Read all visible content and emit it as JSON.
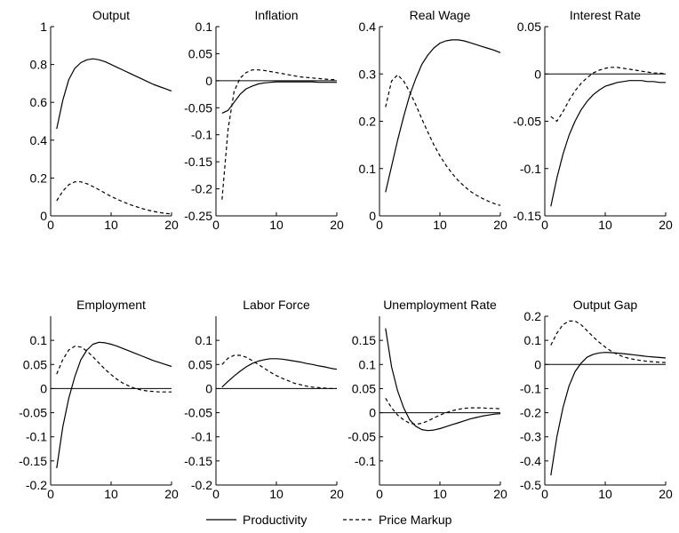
{
  "chart_data": [
    {
      "type": "line",
      "title": "Output",
      "xlim": [
        0,
        20
      ],
      "ylim": [
        0,
        1
      ],
      "xticks": [
        "0",
        "10",
        "20"
      ],
      "yticks": [
        "0",
        "0.2",
        "0.4",
        "0.6",
        "0.8",
        "1"
      ],
      "zero_line": false,
      "x": [
        1,
        2,
        3,
        4,
        5,
        6,
        7,
        8,
        9,
        10,
        11,
        12,
        13,
        14,
        15,
        16,
        17,
        18,
        19,
        20
      ],
      "series": [
        {
          "name": "Productivity",
          "values": [
            0.46,
            0.61,
            0.72,
            0.78,
            0.81,
            0.825,
            0.83,
            0.825,
            0.815,
            0.8,
            0.785,
            0.77,
            0.755,
            0.74,
            0.725,
            0.71,
            0.695,
            0.683,
            0.672,
            0.66
          ]
        },
        {
          "name": "Price Markup",
          "values": [
            0.08,
            0.13,
            0.165,
            0.18,
            0.18,
            0.17,
            0.155,
            0.138,
            0.12,
            0.103,
            0.088,
            0.074,
            0.061,
            0.05,
            0.04,
            0.031,
            0.024,
            0.018,
            0.013,
            0.01
          ]
        }
      ]
    },
    {
      "type": "line",
      "title": "Inflation",
      "xlim": [
        0,
        20
      ],
      "ylim": [
        -0.25,
        0.1
      ],
      "xticks": [
        "0",
        "10",
        "20"
      ],
      "yticks": [
        "-0.25",
        "-0.2",
        "-0.15",
        "-0.1",
        "-0.05",
        "0",
        "0.05",
        "0.1"
      ],
      "zero_line": true,
      "x": [
        1,
        2,
        3,
        4,
        5,
        6,
        7,
        8,
        9,
        10,
        11,
        12,
        13,
        14,
        15,
        16,
        17,
        18,
        19,
        20
      ],
      "series": [
        {
          "name": "Productivity",
          "values": [
            -0.06,
            -0.055,
            -0.04,
            -0.025,
            -0.015,
            -0.01,
            -0.006,
            -0.004,
            -0.003,
            -0.002,
            -0.002,
            -0.002,
            -0.002,
            -0.002,
            -0.002,
            -0.002,
            -0.003,
            -0.003,
            -0.003,
            -0.003
          ]
        },
        {
          "name": "Price Markup",
          "values": [
            -0.22,
            -0.09,
            -0.02,
            0.005,
            0.015,
            0.02,
            0.02,
            0.019,
            0.017,
            0.015,
            0.013,
            0.011,
            0.009,
            0.007,
            0.006,
            0.005,
            0.004,
            0.003,
            0.002,
            0.002
          ]
        }
      ]
    },
    {
      "type": "line",
      "title": "Real Wage",
      "xlim": [
        0,
        20
      ],
      "ylim": [
        0,
        0.4
      ],
      "xticks": [
        "0",
        "10",
        "20"
      ],
      "yticks": [
        "0",
        "0.1",
        "0.2",
        "0.3",
        "0.4"
      ],
      "zero_line": false,
      "x": [
        1,
        2,
        3,
        4,
        5,
        6,
        7,
        8,
        9,
        10,
        11,
        12,
        13,
        14,
        15,
        16,
        17,
        18,
        19,
        20
      ],
      "series": [
        {
          "name": "Productivity",
          "values": [
            0.05,
            0.105,
            0.16,
            0.21,
            0.255,
            0.29,
            0.32,
            0.34,
            0.355,
            0.365,
            0.37,
            0.372,
            0.372,
            0.37,
            0.366,
            0.362,
            0.358,
            0.354,
            0.35,
            0.345
          ]
        },
        {
          "name": "Price Markup",
          "values": [
            0.23,
            0.285,
            0.298,
            0.285,
            0.262,
            0.235,
            0.205,
            0.177,
            0.15,
            0.127,
            0.107,
            0.09,
            0.075,
            0.063,
            0.052,
            0.044,
            0.037,
            0.031,
            0.026,
            0.022
          ]
        }
      ]
    },
    {
      "type": "line",
      "title": "Interest Rate",
      "xlim": [
        0,
        20
      ],
      "ylim": [
        -0.15,
        0.05
      ],
      "xticks": [
        "0",
        "10",
        "20"
      ],
      "yticks": [
        "-0.15",
        "-0.1",
        "-0.05",
        "0",
        "0.05"
      ],
      "zero_line": true,
      "x": [
        1,
        2,
        3,
        4,
        5,
        6,
        7,
        8,
        9,
        10,
        11,
        12,
        13,
        14,
        15,
        16,
        17,
        18,
        19,
        20
      ],
      "series": [
        {
          "name": "Productivity",
          "values": [
            -0.14,
            -0.11,
            -0.085,
            -0.065,
            -0.05,
            -0.038,
            -0.029,
            -0.022,
            -0.017,
            -0.013,
            -0.011,
            -0.009,
            -0.008,
            -0.007,
            -0.007,
            -0.007,
            -0.008,
            -0.008,
            -0.009,
            -0.009
          ]
        },
        {
          "name": "Price Markup",
          "values": [
            -0.045,
            -0.05,
            -0.04,
            -0.028,
            -0.018,
            -0.01,
            -0.004,
            0.001,
            0.004,
            0.006,
            0.007,
            0.007,
            0.006,
            0.005,
            0.004,
            0.003,
            0.002,
            0.001,
            0.001,
            0.0
          ]
        }
      ]
    },
    {
      "type": "line",
      "title": "Employment",
      "xlim": [
        0,
        20
      ],
      "ylim": [
        -0.2,
        0.15
      ],
      "xticks": [
        "0",
        "10",
        "20"
      ],
      "yticks": [
        "-0.2",
        "-0.15",
        "-0.1",
        "-0.05",
        "0",
        "0.05",
        "0.1"
      ],
      "zero_line": true,
      "x": [
        1,
        2,
        3,
        4,
        5,
        6,
        7,
        8,
        9,
        10,
        11,
        12,
        13,
        14,
        15,
        16,
        17,
        18,
        19,
        20
      ],
      "series": [
        {
          "name": "Productivity",
          "values": [
            -0.165,
            -0.08,
            -0.02,
            0.025,
            0.06,
            0.08,
            0.092,
            0.096,
            0.095,
            0.092,
            0.088,
            0.083,
            0.078,
            0.073,
            0.068,
            0.063,
            0.058,
            0.054,
            0.05,
            0.046
          ]
        },
        {
          "name": "Price Markup",
          "values": [
            0.03,
            0.06,
            0.08,
            0.088,
            0.086,
            0.078,
            0.066,
            0.053,
            0.04,
            0.029,
            0.019,
            0.011,
            0.005,
            0.0,
            -0.003,
            -0.005,
            -0.006,
            -0.007,
            -0.007,
            -0.007
          ]
        }
      ]
    },
    {
      "type": "line",
      "title": "Labor Force",
      "xlim": [
        0,
        20
      ],
      "ylim": [
        -0.2,
        0.15
      ],
      "xticks": [
        "0",
        "10",
        "20"
      ],
      "yticks": [
        "-0.2",
        "-0.15",
        "-0.1",
        "-0.05",
        "0",
        "0.05",
        "0.1"
      ],
      "zero_line": true,
      "x": [
        1,
        2,
        3,
        4,
        5,
        6,
        7,
        8,
        9,
        10,
        11,
        12,
        13,
        14,
        15,
        16,
        17,
        18,
        19,
        20
      ],
      "series": [
        {
          "name": "Productivity",
          "values": [
            0.003,
            0.015,
            0.026,
            0.036,
            0.045,
            0.052,
            0.057,
            0.06,
            0.062,
            0.062,
            0.061,
            0.059,
            0.057,
            0.055,
            0.052,
            0.05,
            0.047,
            0.045,
            0.042,
            0.04
          ]
        },
        {
          "name": "Price Markup",
          "values": [
            0.05,
            0.063,
            0.069,
            0.069,
            0.065,
            0.058,
            0.05,
            0.042,
            0.034,
            0.027,
            0.021,
            0.016,
            0.011,
            0.008,
            0.005,
            0.003,
            0.002,
            0.001,
            0.0,
            0.0
          ]
        }
      ]
    },
    {
      "type": "line",
      "title": "Unemployment Rate",
      "xlim": [
        0,
        20
      ],
      "ylim": [
        -0.15,
        0.2
      ],
      "xticks": [
        "0",
        "10",
        "20"
      ],
      "yticks": [
        "-0.1",
        "-0.05",
        "0",
        "0.05",
        "0.1",
        "0.15"
      ],
      "zero_line": true,
      "x": [
        1,
        2,
        3,
        4,
        5,
        6,
        7,
        8,
        9,
        10,
        11,
        12,
        13,
        14,
        15,
        16,
        17,
        18,
        19,
        20
      ],
      "series": [
        {
          "name": "Productivity",
          "values": [
            0.175,
            0.095,
            0.045,
            0.01,
            -0.015,
            -0.028,
            -0.035,
            -0.037,
            -0.036,
            -0.033,
            -0.029,
            -0.025,
            -0.021,
            -0.017,
            -0.013,
            -0.01,
            -0.007,
            -0.005,
            -0.003,
            -0.002
          ]
        },
        {
          "name": "Price Markup",
          "values": [
            0.03,
            0.01,
            -0.005,
            -0.015,
            -0.022,
            -0.024,
            -0.022,
            -0.017,
            -0.011,
            -0.005,
            0.0,
            0.004,
            0.007,
            0.009,
            0.01,
            0.01,
            0.01,
            0.009,
            0.009,
            0.008
          ]
        }
      ]
    },
    {
      "type": "line",
      "title": "Output Gap",
      "xlim": [
        0,
        20
      ],
      "ylim": [
        -0.5,
        0.2
      ],
      "xticks": [
        "0",
        "10",
        "20"
      ],
      "yticks": [
        "-0.5",
        "-0.4",
        "-0.3",
        "-0.2",
        "-0.1",
        "0",
        "0.1",
        "0.2"
      ],
      "zero_line": true,
      "x": [
        1,
        2,
        3,
        4,
        5,
        6,
        7,
        8,
        9,
        10,
        11,
        12,
        13,
        14,
        15,
        16,
        17,
        18,
        19,
        20
      ],
      "series": [
        {
          "name": "Productivity",
          "values": [
            -0.46,
            -0.3,
            -0.18,
            -0.09,
            -0.03,
            0.005,
            0.03,
            0.042,
            0.048,
            0.05,
            0.049,
            0.047,
            0.045,
            0.042,
            0.039,
            0.036,
            0.033,
            0.031,
            0.029,
            0.027
          ]
        },
        {
          "name": "Price Markup",
          "values": [
            0.08,
            0.13,
            0.165,
            0.18,
            0.18,
            0.165,
            0.14,
            0.115,
            0.092,
            0.072,
            0.055,
            0.042,
            0.032,
            0.025,
            0.02,
            0.016,
            0.013,
            0.011,
            0.009,
            0.008
          ]
        }
      ]
    }
  ],
  "legend": {
    "items": [
      {
        "label": "Productivity",
        "style": "solid"
      },
      {
        "label": "Price Markup",
        "style": "dashed"
      }
    ]
  },
  "colors": {
    "line": "#000000",
    "background": "#ffffff"
  }
}
